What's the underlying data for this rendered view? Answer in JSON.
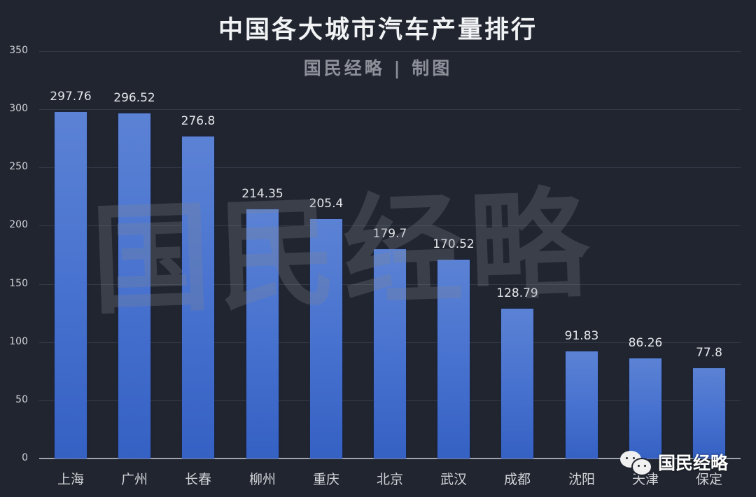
{
  "header": {
    "title": "中国各大城市汽车产量排行",
    "subtitle": "国民经略 | 制图"
  },
  "watermark": {
    "text": "国民经略"
  },
  "badge": {
    "text": "国民经略",
    "icon": "wechat-icon"
  },
  "colors": {
    "background": "#20252f",
    "bar_top": "#5b82d4",
    "bar_bottom": "#3561c4",
    "gridline": "#333a47"
  },
  "chart_data": {
    "type": "bar",
    "title": "中国各大城市汽车产量排行",
    "subtitle": "国民经略 | 制图",
    "xlabel": "",
    "ylabel": "",
    "categories": [
      "上海",
      "广州",
      "长春",
      "柳州",
      "重庆",
      "北京",
      "武汉",
      "成都",
      "沈阳",
      "天津",
      "保定"
    ],
    "values": [
      297.76,
      296.52,
      276.8,
      214.35,
      205.4,
      179.7,
      170.52,
      128.79,
      91.83,
      86.26,
      77.8
    ],
    "value_labels": [
      "297.76",
      "296.52",
      "276.8",
      "214.35",
      "205.4",
      "179.7",
      "170.52",
      "128.79",
      "91.83",
      "86.26",
      "77.8"
    ],
    "ylim": [
      0,
      350
    ],
    "yticks": [
      "0",
      "50",
      "100",
      "150",
      "200",
      "250",
      "300",
      "350"
    ],
    "grid": true,
    "legend": null
  }
}
